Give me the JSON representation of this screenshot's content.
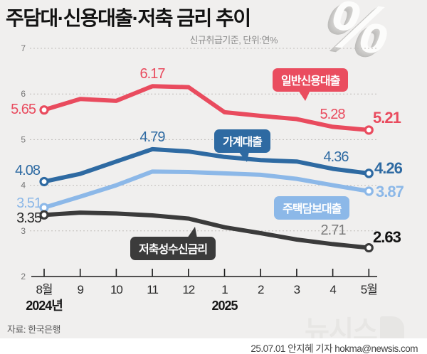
{
  "header": {
    "title": "주담대·신용대출·저축 금리 추이",
    "subtitle": "신규취급기준, 단위:연%",
    "percent_logo": "%"
  },
  "footer": {
    "source": "자료: 한국은행",
    "watermark": "뉴시스",
    "credit": "25.07.01 안지혜 기자 hokma@newsis.com"
  },
  "colors": {
    "background": "#f0efee",
    "red": "#e94b5e",
    "dark_blue": "#2e6aa2",
    "light_blue": "#8cb8e8",
    "dark_gray": "#3b3b3b",
    "grid": "#bfbdba"
  },
  "chart_data": {
    "type": "line",
    "title": "주담대·신용대출·저축 금리 추이",
    "xlabel": "",
    "ylabel": "연%",
    "ylim": [
      2,
      7
    ],
    "yticks": [
      7,
      6,
      5,
      4,
      3,
      2
    ],
    "grid": "dashed-horizontal",
    "legend_position": "inline-callout-boxes",
    "categories": [
      "8월",
      "9",
      "10",
      "11",
      "12",
      "1",
      "2",
      "3",
      "4",
      "5월"
    ],
    "x_year_labels": [
      {
        "text": "2024년",
        "index": 0
      },
      {
        "text": "2025",
        "index": 5
      }
    ],
    "series": [
      {
        "name": "일반신용대출",
        "slug": "general-credit-loan",
        "color": "#e94b5e",
        "values": [
          5.65,
          5.89,
          5.85,
          6.17,
          6.15,
          5.6,
          5.52,
          5.45,
          5.28,
          5.21
        ],
        "point_labels": [
          {
            "index": 0,
            "text": "5.65"
          },
          {
            "index": 3,
            "text": "6.17"
          },
          {
            "index": 8,
            "text": "5.28"
          },
          {
            "index": 9,
            "text": "5.21"
          }
        ]
      },
      {
        "name": "가계대출",
        "slug": "household-loan",
        "color": "#2e6aa2",
        "values": [
          4.08,
          4.25,
          4.52,
          4.79,
          4.74,
          4.62,
          4.55,
          4.52,
          4.36,
          4.26
        ],
        "point_labels": [
          {
            "index": 0,
            "text": "4.08"
          },
          {
            "index": 3,
            "text": "4.79"
          },
          {
            "index": 8,
            "text": "4.36"
          },
          {
            "index": 9,
            "text": "4.26"
          }
        ]
      },
      {
        "name": "주택담보대출",
        "slug": "mortgage-loan",
        "color": "#8cb8e8",
        "values": [
          3.51,
          3.75,
          4.0,
          4.3,
          4.29,
          4.26,
          4.23,
          4.14,
          4.0,
          3.87
        ],
        "point_labels": [
          {
            "index": 0,
            "text": "3.51"
          },
          {
            "index": 9,
            "text": "3.87"
          }
        ]
      },
      {
        "name": "저축성수신금리",
        "slug": "savings-deposit-rate",
        "color": "#3b3b3b",
        "values": [
          3.35,
          3.4,
          3.38,
          3.34,
          3.27,
          3.08,
          2.95,
          2.81,
          2.71,
          2.63
        ],
        "point_labels": [
          {
            "index": 0,
            "text": "3.35"
          },
          {
            "index": 8,
            "text": "2.71"
          },
          {
            "index": 9,
            "text": "2.63"
          }
        ]
      }
    ]
  }
}
